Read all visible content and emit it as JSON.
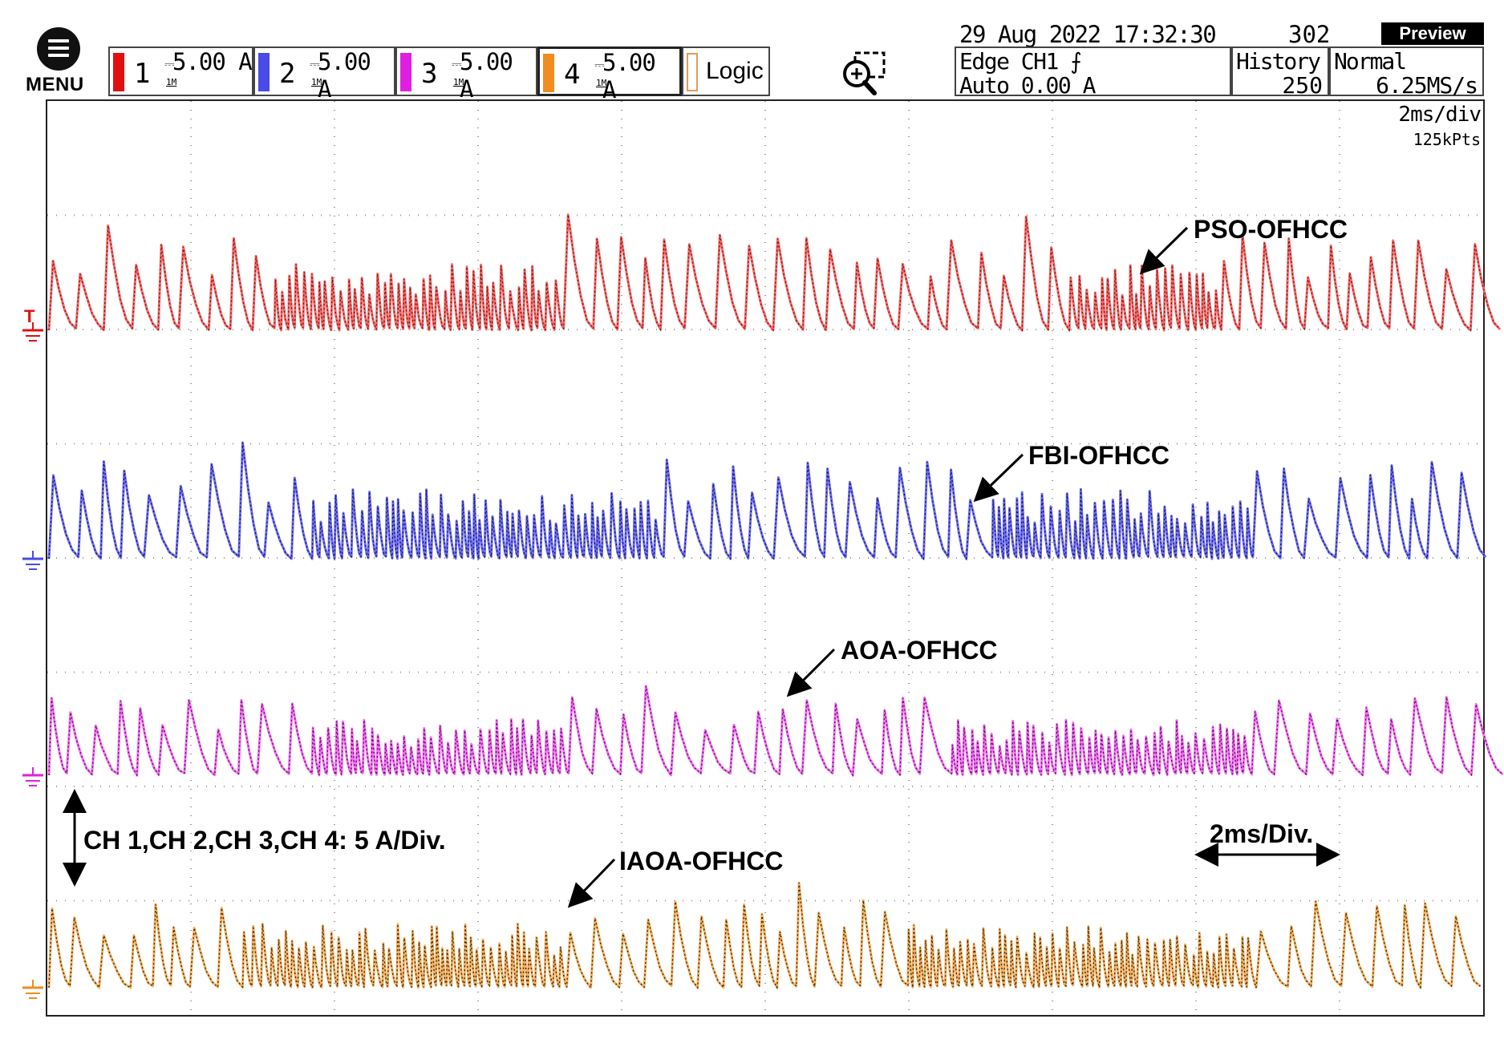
{
  "menu": {
    "label": "MENU"
  },
  "channels": [
    {
      "num": "1",
      "scale": "5.00 A",
      "imp": "1M",
      "color": "#e01010"
    },
    {
      "num": "2",
      "scale": "5.00 A",
      "imp": "1M",
      "color": "#4a4ae8"
    },
    {
      "num": "3",
      "scale": "5.00 A",
      "imp": "1M",
      "color": "#e020e0"
    },
    {
      "num": "4",
      "scale": "5.00 A",
      "imp": "1M",
      "color": "#f08c20"
    }
  ],
  "logic": {
    "label": "Logic"
  },
  "status": {
    "datetime": "29 Aug 2022 17:32:30",
    "count": "302",
    "mode_badge": "Preview",
    "trigger_line1": "Edge CH1 ⨍",
    "trigger_line2": "Auto 0.00 A",
    "history_label": "History",
    "history_value": "250",
    "acq_mode": "Normal",
    "sample_rate": "6.25MS/s"
  },
  "timebase": {
    "value": "2ms/div",
    "points": "125kPts"
  },
  "annotations": {
    "pso": "PSO-OFHCC",
    "fbi": "FBI-OFHCC",
    "aoa": "AOA-OFHCC",
    "iaoa": "IAOA-OFHCC",
    "scale_note": "CH 1,CH 2,CH 3,CH 4: 5 A/Div.",
    "time_note": "2ms/Div."
  },
  "colors": {
    "ch1_dark": "#8a1010",
    "ch1_light": "#f06a6a",
    "ch2_dark": "#15156e",
    "ch2_light": "#6e6ef0",
    "ch3_dark": "#6a0a6a",
    "ch3_light": "#f070f0",
    "ch4_dark": "#3a2a10",
    "ch4_light": "#f5b060"
  }
}
